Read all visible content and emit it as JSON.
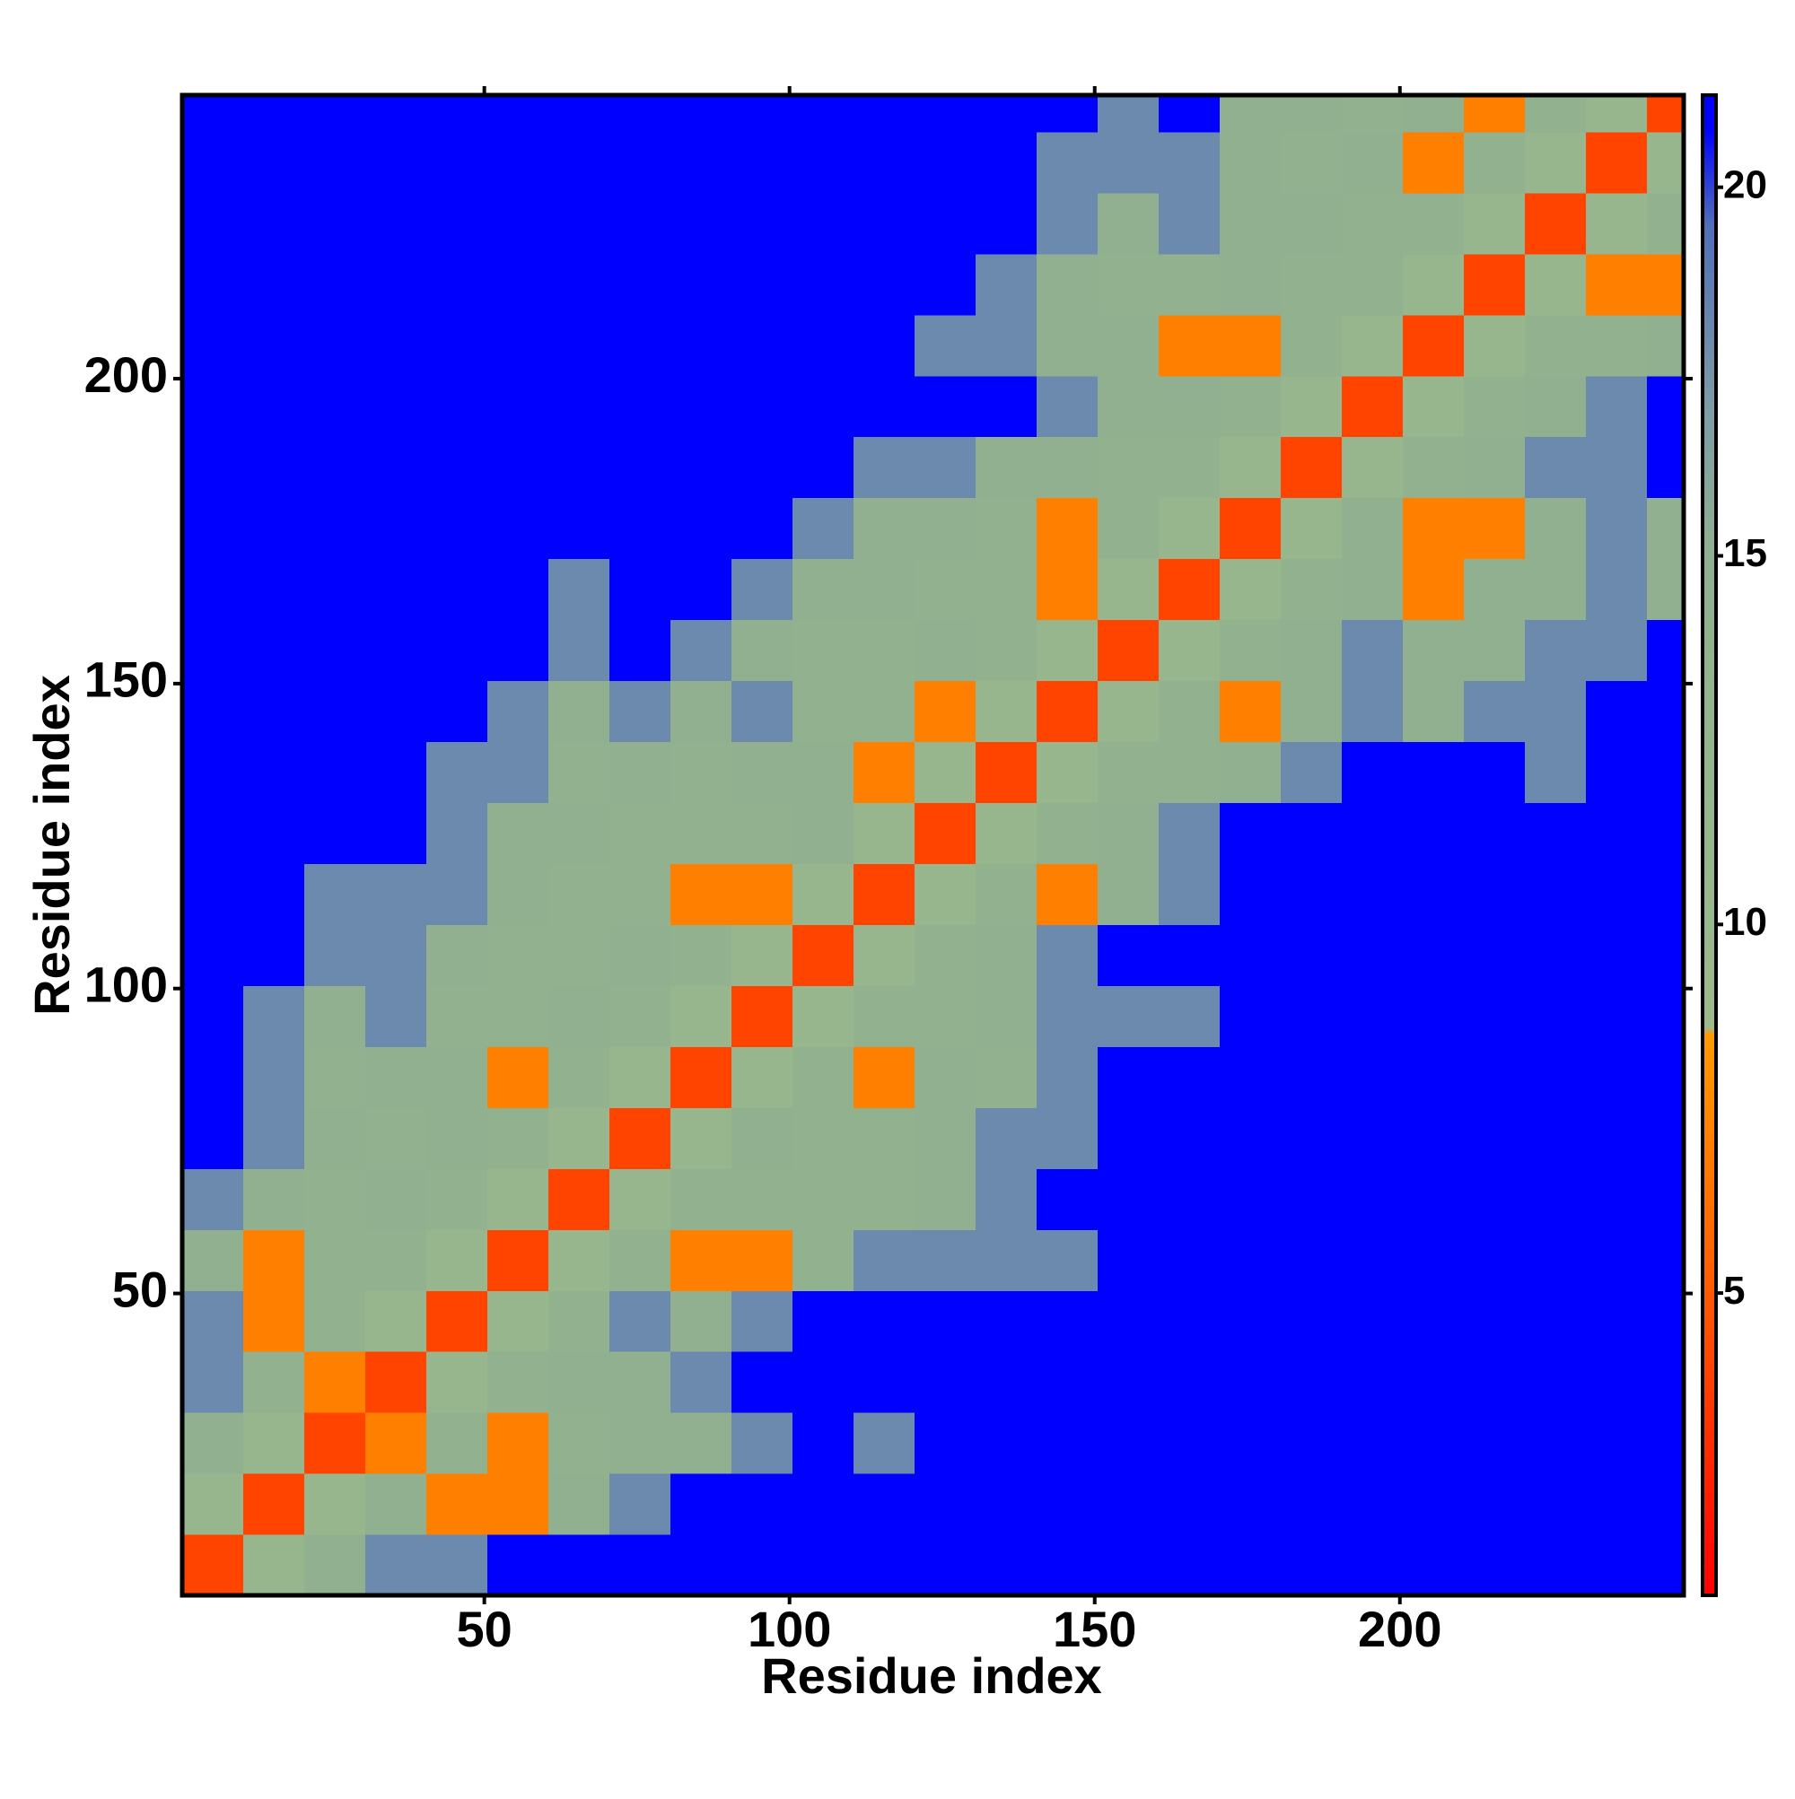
{
  "chart_data": {
    "type": "heatmap",
    "xlabel": "Residue index",
    "ylabel": "Residue index",
    "xlim": [
      0.5,
      246.5
    ],
    "ylim": [
      0.5,
      246.5
    ],
    "xticks": [
      50,
      100,
      150,
      200
    ],
    "yticks": [
      50,
      100,
      150,
      200
    ],
    "bins": [
      0.5,
      10.5,
      20.5,
      30.5,
      40.5,
      50.5,
      60.5,
      70.5,
      80.5,
      90.5,
      100.5,
      110.5,
      120.5,
      130.5,
      140.5,
      150.5,
      160.5,
      170.5,
      180.5,
      190.5,
      200.5,
      210.5,
      220.5,
      230.5,
      240.5,
      246.5
    ],
    "zlim": [
      0.9,
      21.25
    ],
    "zticks": [
      5,
      10,
      15,
      20
    ],
    "colorscale": [
      [
        0.9,
        "#ff0000"
      ],
      [
        5,
        "#ff5a00"
      ],
      [
        8.5,
        "#ff9a00"
      ],
      [
        8.6,
        "#9dba8c"
      ],
      [
        15,
        "#90b090"
      ],
      [
        17,
        "#7f9ca6"
      ],
      [
        19.5,
        "#4f6fb8"
      ],
      [
        20.8,
        "#0000ff"
      ],
      [
        21.25,
        "#0000ff"
      ]
    ],
    "z": [
      [
        4,
        11,
        15,
        18,
        18,
        21,
        21,
        21,
        21,
        21,
        21,
        21,
        21,
        21,
        21,
        21,
        21,
        21,
        21,
        21,
        21,
        21,
        21,
        21,
        21
      ],
      [
        11,
        4,
        11,
        15,
        7,
        7,
        15,
        18,
        21,
        21,
        21,
        21,
        21,
        21,
        21,
        21,
        21,
        21,
        21,
        21,
        21,
        21,
        21,
        21,
        21
      ],
      [
        15,
        11,
        4,
        7,
        14,
        7,
        14,
        15,
        15,
        18,
        21,
        18,
        21,
        21,
        21,
        21,
        21,
        21,
        21,
        21,
        21,
        21,
        21,
        21,
        21
      ],
      [
        18,
        14,
        7,
        4,
        11,
        14,
        15,
        15,
        18,
        21,
        21,
        21,
        21,
        21,
        21,
        21,
        21,
        21,
        21,
        21,
        21,
        21,
        21,
        21,
        21
      ],
      [
        18,
        7,
        14,
        11,
        4,
        11,
        14,
        18,
        15,
        18,
        21,
        21,
        21,
        21,
        21,
        21,
        21,
        21,
        21,
        21,
        21,
        21,
        21,
        21,
        21
      ],
      [
        15,
        7,
        14,
        14,
        11,
        4,
        11,
        14,
        7,
        7,
        14,
        18,
        18,
        18,
        18,
        21,
        21,
        21,
        21,
        21,
        21,
        21,
        21,
        21,
        21
      ],
      [
        18,
        15,
        14,
        15,
        14,
        11,
        4,
        11,
        14,
        14,
        14,
        14,
        15,
        18,
        21,
        21,
        21,
        21,
        21,
        21,
        21,
        21,
        21,
        21,
        21
      ],
      [
        21,
        18,
        15,
        14,
        15,
        14,
        11,
        4,
        11,
        15,
        14,
        14,
        15,
        18,
        18,
        21,
        21,
        21,
        21,
        21,
        21,
        21,
        21,
        21,
        21
      ],
      [
        21,
        18,
        14,
        15,
        15,
        7,
        14,
        11,
        4,
        11,
        14,
        7,
        15,
        14,
        18,
        21,
        21,
        21,
        21,
        21,
        21,
        21,
        21,
        21,
        21
      ],
      [
        21,
        18,
        15,
        18,
        14,
        14,
        15,
        14,
        11,
        4,
        11,
        14,
        14,
        15,
        18,
        18,
        18,
        21,
        21,
        21,
        21,
        21,
        21,
        21,
        21
      ],
      [
        21,
        21,
        18,
        18,
        15,
        14,
        14,
        15,
        14,
        11,
        4,
        11,
        14,
        15,
        18,
        21,
        21,
        21,
        21,
        21,
        21,
        21,
        21,
        21,
        21
      ],
      [
        21,
        21,
        18,
        18,
        18,
        15,
        14,
        14,
        7,
        7,
        11,
        4,
        11,
        14,
        7,
        15,
        18,
        21,
        21,
        21,
        21,
        21,
        21,
        21,
        21
      ],
      [
        21,
        21,
        21,
        21,
        18,
        15,
        15,
        14,
        14,
        14,
        15,
        11,
        4,
        11,
        14,
        15,
        18,
        21,
        21,
        21,
        21,
        21,
        21,
        21,
        21
      ],
      [
        21,
        21,
        21,
        21,
        18,
        18,
        14,
        15,
        14,
        15,
        15,
        7,
        11,
        4,
        11,
        14,
        14,
        15,
        18,
        21,
        21,
        21,
        18,
        21,
        21
      ],
      [
        21,
        21,
        21,
        21,
        21,
        18,
        15,
        18,
        15,
        18,
        14,
        14,
        7,
        11,
        4,
        11,
        14,
        7,
        15,
        18,
        15,
        18,
        18,
        21,
        21
      ],
      [
        21,
        21,
        21,
        21,
        21,
        21,
        18,
        21,
        18,
        15,
        14,
        14,
        15,
        14,
        11,
        4,
        11,
        14,
        15,
        18,
        15,
        15,
        18,
        18,
        21
      ],
      [
        21,
        21,
        21,
        21,
        21,
        21,
        18,
        21,
        21,
        18,
        15,
        15,
        14,
        14,
        7,
        11,
        4,
        11,
        14,
        15,
        7,
        15,
        15,
        18,
        15
      ],
      [
        21,
        21,
        21,
        21,
        21,
        21,
        21,
        21,
        21,
        21,
        18,
        15,
        15,
        14,
        7,
        14,
        11,
        4,
        11,
        15,
        7,
        7,
        15,
        18,
        15
      ],
      [
        21,
        21,
        21,
        21,
        21,
        21,
        21,
        21,
        21,
        21,
        21,
        18,
        18,
        15,
        15,
        14,
        14,
        11,
        4,
        11,
        14,
        15,
        18,
        18,
        21
      ],
      [
        21,
        21,
        21,
        21,
        21,
        21,
        21,
        21,
        21,
        21,
        21,
        21,
        21,
        21,
        18,
        15,
        15,
        14,
        11,
        4,
        11,
        14,
        15,
        18,
        21
      ],
      [
        21,
        21,
        21,
        21,
        21,
        21,
        21,
        21,
        21,
        21,
        21,
        21,
        18,
        18,
        15,
        15,
        7,
        7,
        14,
        11,
        4,
        11,
        14,
        14,
        15
      ],
      [
        21,
        21,
        21,
        21,
        21,
        21,
        21,
        21,
        21,
        21,
        21,
        21,
        21,
        18,
        15,
        14,
        14,
        15,
        14,
        14,
        11,
        4,
        11,
        7,
        7
      ],
      [
        21,
        21,
        21,
        21,
        21,
        21,
        21,
        21,
        21,
        21,
        21,
        21,
        21,
        21,
        18,
        15,
        18,
        15,
        15,
        14,
        14,
        11,
        4,
        11,
        14
      ],
      [
        21,
        21,
        21,
        21,
        21,
        21,
        21,
        21,
        21,
        21,
        21,
        21,
        21,
        21,
        18,
        18,
        18,
        15,
        14,
        15,
        7,
        14,
        11,
        4,
        11
      ],
      [
        21,
        21,
        21,
        21,
        21,
        21,
        21,
        21,
        21,
        21,
        21,
        21,
        21,
        21,
        21,
        18,
        21,
        15,
        15,
        14,
        15,
        7,
        14,
        11,
        4
      ]
    ]
  }
}
